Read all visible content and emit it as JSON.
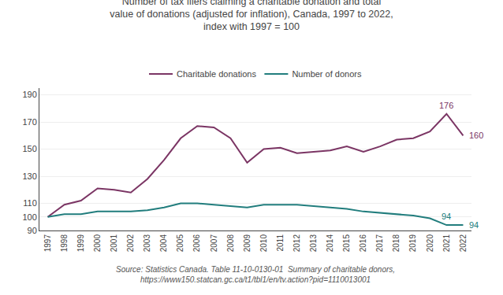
{
  "chart_data": {
    "type": "line",
    "title": "Number of tax filers claiming a charitable donation and total\nvalue of donations (adjusted for inflation), Canada, 1997 to 2022,\nindex with 1997 = 100",
    "x": [
      1997,
      1998,
      1999,
      2000,
      2001,
      2002,
      2003,
      2004,
      2005,
      2006,
      2007,
      2008,
      2009,
      2010,
      2011,
      2012,
      2013,
      2014,
      2015,
      2016,
      2017,
      2018,
      2019,
      2020,
      2021,
      2022
    ],
    "series": [
      {
        "name": "Charitable donations",
        "color": "#7b3564",
        "values": [
          100,
          109,
          112,
          121,
          120,
          118,
          128,
          142,
          158,
          167,
          166,
          158,
          140,
          150,
          151,
          147,
          148,
          149,
          152,
          148,
          152,
          157,
          158,
          163,
          176,
          160
        ]
      },
      {
        "name": "Number of donors",
        "color": "#217d7d",
        "values": [
          100,
          102,
          102,
          104,
          104,
          104,
          105,
          107,
          110,
          110,
          109,
          108,
          107,
          109,
          109,
          109,
          108,
          107,
          106,
          104,
          103,
          102,
          101,
          99,
          94,
          94
        ]
      }
    ],
    "xlim": [
      1996.5,
      2022.5
    ],
    "xticks": [
      1997,
      1998,
      1999,
      2000,
      2001,
      2002,
      2003,
      2004,
      2005,
      2006,
      2007,
      2008,
      2009,
      2010,
      2011,
      2012,
      2013,
      2014,
      2015,
      2016,
      2017,
      2018,
      2019,
      2020,
      2021,
      2022
    ],
    "ylim": [
      90,
      195
    ],
    "yticks": [
      90,
      100,
      110,
      130,
      150,
      170,
      190
    ],
    "grid": true,
    "legend": "top",
    "annotations": [
      {
        "text": "176",
        "x": 2021,
        "y": 176,
        "series": "Charitable donations",
        "position": "above"
      },
      {
        "text": "160",
        "x": 2022,
        "y": 160,
        "series": "Charitable donations",
        "position": "right"
      },
      {
        "text": "94",
        "x": 2021,
        "y": 94,
        "series": "Number of donors",
        "position": "above"
      },
      {
        "text": "94",
        "x": 2022,
        "y": 94,
        "series": "Number of donors",
        "position": "right"
      }
    ],
    "source": "Source: Statistics Canada. Table 11-10-0130-01  Summary of charitable donors,\nhttps://www150.statcan.gc.ca/t1/tbl1/en/tv.action?pid=1110013001"
  }
}
